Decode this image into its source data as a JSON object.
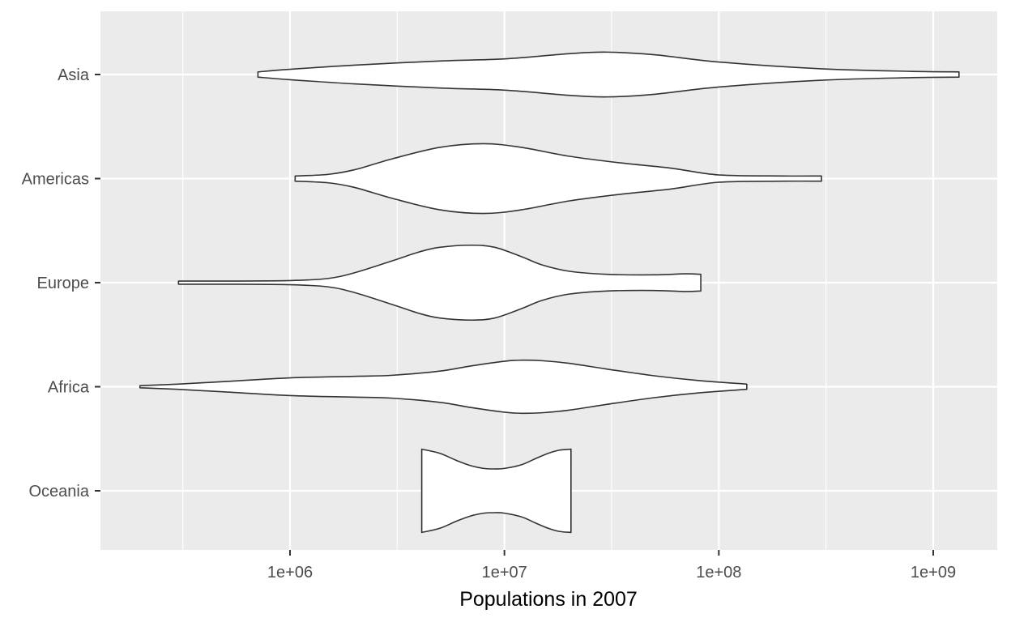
{
  "chart_data": {
    "type": "violin",
    "title": "",
    "xlabel": "Populations in 2007",
    "ylabel": "",
    "x_scale": "log10",
    "xlim": [
      100000,
      2000000000
    ],
    "x_ticks": [
      1000000,
      10000000,
      100000000,
      1000000000
    ],
    "x_tick_labels": [
      "1e+06",
      "1e+07",
      "1e+08",
      "1e+09"
    ],
    "categories": [
      "Oceania",
      "Africa",
      "Europe",
      "Americas",
      "Asia"
    ],
    "grid": true,
    "legend": "none",
    "violins": [
      {
        "category": "Oceania",
        "min": 4115771,
        "max": 20434176,
        "profile": [
          [
            4115771,
            0.8
          ],
          [
            5000000,
            0.72
          ],
          [
            6000000,
            0.58
          ],
          [
            7000000,
            0.48
          ],
          [
            8000000,
            0.43
          ],
          [
            9000000,
            0.42
          ],
          [
            10000000,
            0.43
          ],
          [
            12000000,
            0.5
          ],
          [
            14000000,
            0.62
          ],
          [
            16000000,
            0.72
          ],
          [
            18000000,
            0.78
          ],
          [
            20434176,
            0.8
          ]
        ]
      },
      {
        "category": "Africa",
        "min": 199579,
        "max": 135031164,
        "profile": [
          [
            199579,
            0.02
          ],
          [
            300000,
            0.05
          ],
          [
            500000,
            0.1
          ],
          [
            1000000,
            0.17
          ],
          [
            2000000,
            0.2
          ],
          [
            3000000,
            0.22
          ],
          [
            5000000,
            0.3
          ],
          [
            7000000,
            0.4
          ],
          [
            10000000,
            0.49
          ],
          [
            12000000,
            0.51
          ],
          [
            15000000,
            0.5
          ],
          [
            20000000,
            0.45
          ],
          [
            30000000,
            0.34
          ],
          [
            50000000,
            0.21
          ],
          [
            80000000,
            0.12
          ],
          [
            135031164,
            0.05
          ]
        ]
      },
      {
        "category": "Europe",
        "min": 301931,
        "max": 82400996,
        "profile": [
          [
            301931,
            0.03
          ],
          [
            500000,
            0.03
          ],
          [
            1000000,
            0.04
          ],
          [
            1500000,
            0.08
          ],
          [
            2000000,
            0.19
          ],
          [
            3000000,
            0.42
          ],
          [
            4000000,
            0.59
          ],
          [
            5000000,
            0.68
          ],
          [
            7000000,
            0.72
          ],
          [
            9000000,
            0.68
          ],
          [
            12000000,
            0.5
          ],
          [
            15000000,
            0.34
          ],
          [
            20000000,
            0.22
          ],
          [
            30000000,
            0.16
          ],
          [
            50000000,
            0.15
          ],
          [
            70000000,
            0.17
          ],
          [
            82400996,
            0.16
          ]
        ]
      },
      {
        "category": "Americas",
        "min": 1056608,
        "max": 301139947,
        "profile": [
          [
            1056608,
            0.05
          ],
          [
            1500000,
            0.08
          ],
          [
            2000000,
            0.17
          ],
          [
            3000000,
            0.38
          ],
          [
            5000000,
            0.6
          ],
          [
            8000000,
            0.67
          ],
          [
            12000000,
            0.6
          ],
          [
            20000000,
            0.43
          ],
          [
            35000000,
            0.3
          ],
          [
            60000000,
            0.2
          ],
          [
            100000000,
            0.07
          ],
          [
            200000000,
            0.05
          ],
          [
            301139947,
            0.05
          ]
        ]
      },
      {
        "category": "Asia",
        "min": 708573,
        "max": 1318683096,
        "profile": [
          [
            708573,
            0.05
          ],
          [
            1000000,
            0.1
          ],
          [
            2000000,
            0.18
          ],
          [
            5000000,
            0.26
          ],
          [
            10000000,
            0.3
          ],
          [
            20000000,
            0.4
          ],
          [
            30000000,
            0.43
          ],
          [
            50000000,
            0.38
          ],
          [
            100000000,
            0.24
          ],
          [
            300000000,
            0.11
          ],
          [
            800000000,
            0.06
          ],
          [
            1318683096,
            0.05
          ]
        ]
      }
    ]
  }
}
